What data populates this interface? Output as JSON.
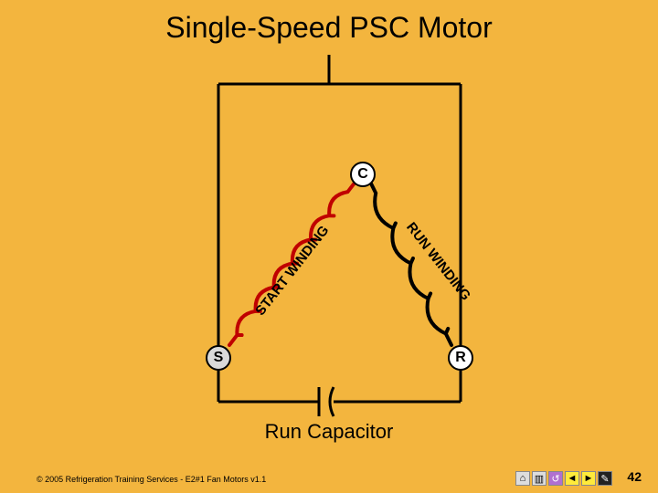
{
  "title": "Single-Speed PSC Motor",
  "nodes": {
    "common": {
      "label": "C",
      "bg": "#ffffff"
    },
    "start": {
      "label": "S",
      "bg": "#d9d9d9"
    },
    "run": {
      "label": "R",
      "bg": "#ffffff"
    }
  },
  "windings": {
    "start": {
      "label": "START WINDING",
      "color": "#c00000",
      "stroke_width": 4,
      "coil_turns": 6
    },
    "run": {
      "label": "RUN WINDING",
      "color": "#000000",
      "stroke_width": 4,
      "coil_turns": 4
    }
  },
  "capacitor": {
    "label": "Run Capacitor",
    "stroke": "#000000",
    "stroke_width": 3
  },
  "power_lines": {
    "stroke": "#000000",
    "stroke_width": 3
  },
  "background": "#f3b53e",
  "footer": {
    "copyright": "© 2005 Refrigeration Training Services - E2#1 Fan Motors v1.1",
    "slide_number": "42"
  },
  "nav": {
    "home": "⌂",
    "doc": "▥",
    "back": "↺",
    "prev": "◄",
    "next": "►",
    "pen": "✎"
  }
}
